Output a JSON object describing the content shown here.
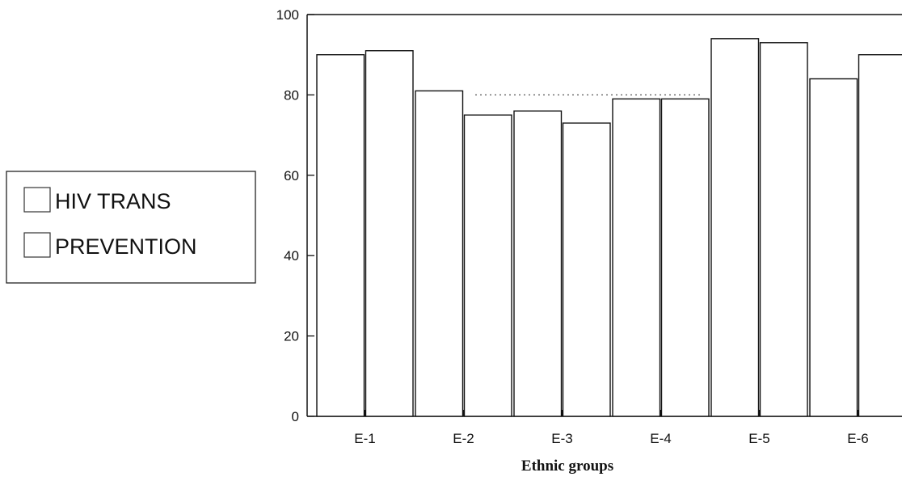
{
  "chart_data": {
    "type": "bar",
    "categories": [
      "E-1",
      "E-2",
      "E-3",
      "E-4",
      "E-5",
      "E-6"
    ],
    "series": [
      {
        "name": "HIV TRANS",
        "values": [
          90,
          81,
          76,
          79,
          94,
          84
        ]
      },
      {
        "name": "PREVENTION",
        "values": [
          91,
          75,
          73,
          79,
          93,
          90
        ]
      }
    ],
    "xlabel": "Ethnic groups",
    "ylabel": "",
    "ylim": [
      0,
      100
    ],
    "yticks": [
      "0",
      "20",
      "40",
      "60",
      "80",
      "100"
    ],
    "reference_line": 80,
    "legend_position": "left",
    "grid": false,
    "colors": {
      "bar_fill": "#ffffff",
      "bar_stroke": "#111111",
      "axis": "#111111"
    }
  }
}
